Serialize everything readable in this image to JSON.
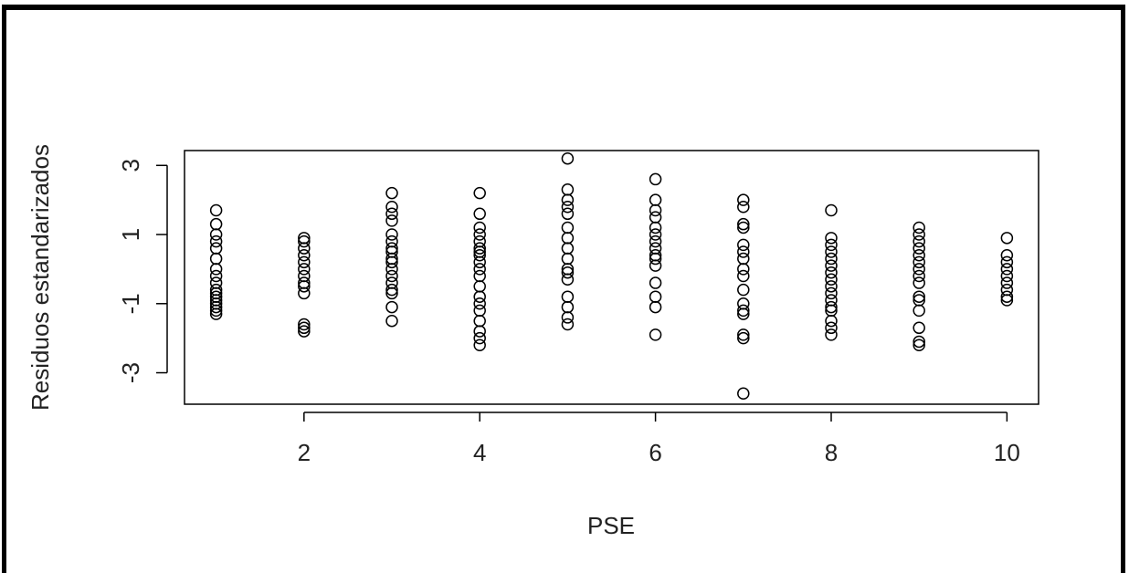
{
  "chart_data": {
    "type": "scatter",
    "xlabel": "PSE",
    "ylabel": "Residuos estandarizados",
    "xlim": [
      0.64,
      10.36
    ],
    "ylim": [
      -3.91,
      3.43
    ],
    "xticks": [
      2,
      4,
      6,
      8,
      10
    ],
    "yticks": [
      -3,
      -1,
      1,
      3
    ],
    "color": "#000000",
    "x": [
      1,
      1,
      1,
      1,
      1,
      1,
      1,
      1,
      1,
      1,
      1,
      1,
      1,
      1,
      1,
      1,
      1,
      2,
      2,
      2,
      2,
      2,
      2,
      2,
      2,
      2,
      2,
      2,
      2,
      2,
      3,
      3,
      3,
      3,
      3,
      3,
      3,
      3,
      3,
      3,
      3,
      3,
      3,
      3,
      3,
      3,
      3,
      4,
      4,
      4,
      4,
      4,
      4,
      4,
      4,
      4,
      4,
      4,
      4,
      4,
      4,
      4,
      4,
      4,
      4,
      4,
      5,
      5,
      5,
      5,
      5,
      5,
      5,
      5,
      5,
      5,
      5,
      5,
      5,
      5,
      5,
      5,
      6,
      6,
      6,
      6,
      6,
      6,
      6,
      6,
      6,
      6,
      6,
      6,
      6,
      6,
      6,
      7,
      7,
      7,
      7,
      7,
      7,
      7,
      7,
      7,
      7,
      7,
      7,
      7,
      7,
      7,
      7,
      8,
      8,
      8,
      8,
      8,
      8,
      8,
      8,
      8,
      8,
      8,
      8,
      8,
      8,
      8,
      8,
      9,
      9,
      9,
      9,
      9,
      9,
      9,
      9,
      9,
      9,
      9,
      9,
      9,
      9,
      9,
      10,
      10,
      10,
      10,
      10,
      10,
      10,
      10,
      10
    ],
    "values": [
      1.7,
      1.3,
      1.0,
      0.8,
      0.6,
      0.3,
      0.0,
      -0.2,
      -0.4,
      -0.6,
      -0.7,
      -0.8,
      -0.9,
      -1.0,
      -1.1,
      -1.2,
      -1.3,
      0.9,
      0.8,
      0.6,
      0.4,
      0.2,
      0.0,
      -0.2,
      -0.4,
      -0.5,
      -0.7,
      -1.6,
      -1.7,
      -1.8,
      2.2,
      1.8,
      1.6,
      1.4,
      1.0,
      0.8,
      0.6,
      0.5,
      0.3,
      0.2,
      0.0,
      -0.2,
      -0.4,
      -0.6,
      -0.7,
      -1.1,
      -1.5,
      2.2,
      1.6,
      1.2,
      1.0,
      0.8,
      0.6,
      0.5,
      0.4,
      0.2,
      0.0,
      -0.2,
      -0.5,
      -0.8,
      -1.0,
      -1.2,
      -1.5,
      -1.8,
      -2.0,
      -2.2,
      3.2,
      2.3,
      2.0,
      1.8,
      1.6,
      1.2,
      0.9,
      0.6,
      0.3,
      0.0,
      -0.1,
      -0.3,
      -0.8,
      -1.1,
      -1.4,
      -1.6,
      2.6,
      2.0,
      1.7,
      1.5,
      1.2,
      1.0,
      0.8,
      0.6,
      0.4,
      0.3,
      0.1,
      -0.4,
      -0.8,
      -1.1,
      -1.9,
      2.0,
      1.8,
      1.3,
      1.2,
      0.7,
      0.5,
      0.3,
      0.0,
      -0.2,
      -0.6,
      -1.0,
      -1.2,
      -1.3,
      -1.9,
      -2.0,
      -3.6,
      1.7,
      0.9,
      0.7,
      0.5,
      0.3,
      0.1,
      -0.1,
      -0.3,
      -0.5,
      -0.7,
      -0.9,
      -1.1,
      -1.2,
      -1.5,
      -1.7,
      -1.9,
      1.2,
      1.0,
      0.8,
      0.6,
      0.4,
      0.2,
      0.0,
      -0.2,
      -0.4,
      -0.8,
      -0.9,
      -1.2,
      -1.7,
      -2.1,
      -2.2,
      0.9,
      0.4,
      0.2,
      0.0,
      -0.2,
      -0.4,
      -0.6,
      -0.8,
      -0.9
    ]
  }
}
